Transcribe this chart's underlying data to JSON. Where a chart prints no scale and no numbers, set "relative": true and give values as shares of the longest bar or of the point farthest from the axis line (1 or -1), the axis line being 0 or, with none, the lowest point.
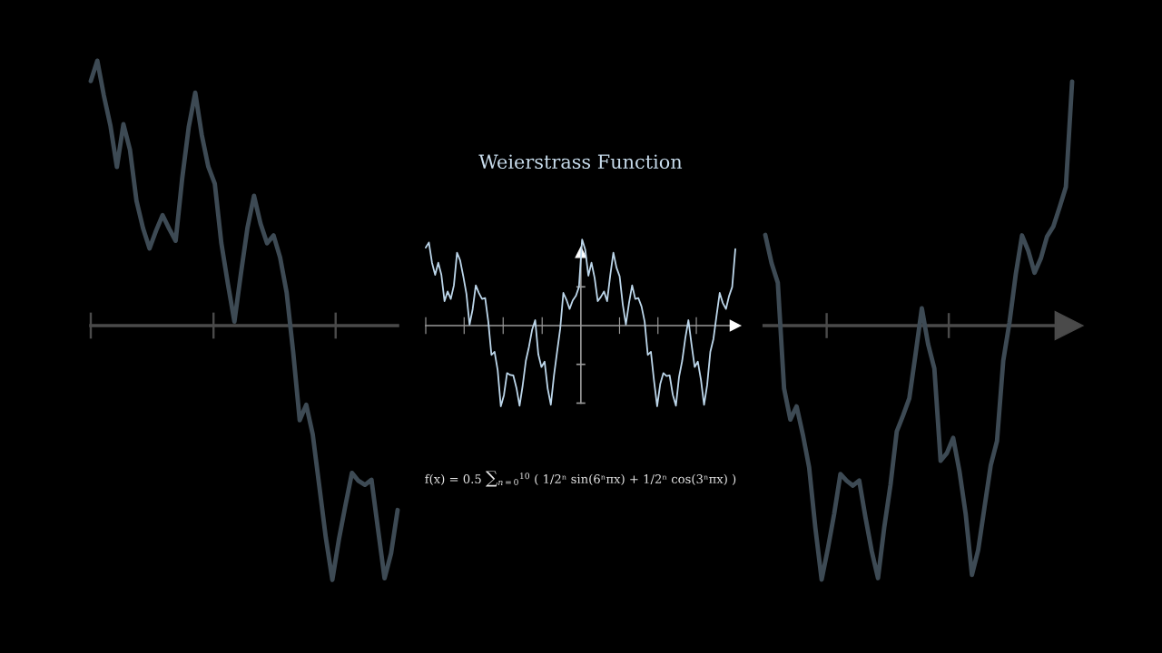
{
  "chart_data": [
    {
      "type": "line",
      "relative": true,
      "categories": [
        null,
        null,
        null,
        null,
        null,
        null,
        null,
        null,
        null,
        null,
        null,
        null,
        null,
        null,
        null,
        null,
        null,
        null,
        null,
        null,
        null,
        null,
        null,
        null,
        null,
        null,
        null,
        null,
        null,
        null,
        null,
        null,
        null,
        null,
        null,
        null,
        null,
        null,
        null,
        null,
        null,
        null,
        null,
        null,
        null,
        null,
        null,
        null
      ],
      "grid": false,
      "legend": false,
      "marker": "none",
      "line_style": "solid",
      "series": [
        {
          "color": "#3d4a54",
          "values": [
            0.923,
            1.0,
            0.869,
            0.756,
            0.599,
            0.76,
            0.664,
            0.471,
            0.368,
            0.291,
            0.358,
            0.417,
            0.366,
            0.32,
            0.555,
            0.749,
            0.879,
            0.72,
            0.6,
            0.535,
            0.311,
            0.158,
            0.015,
            0.197,
            0.369,
            0.49,
            0.385,
            0.311,
            0.34,
            0.257,
            0.125,
            -0.099,
            -0.357,
            -0.299,
            -0.411,
            -0.605,
            -0.8,
            -0.96,
            -0.808,
            -0.679,
            -0.556,
            -0.586,
            -0.601,
            -0.582,
            -0.769,
            -0.954,
            -0.86,
            -0.696
          ]
        }
      ]
    },
    {
      "type": "line",
      "relative": true,
      "title": "Weierstrass Function",
      "annotations": [
        "f(x) = 0.5 ∑$_{n=0}$$^{10}$ ( 1/2ⁿ sin(6ⁿπx) + 1/2ⁿ cos(3ⁿπx) )"
      ],
      "categories": [
        null,
        null,
        null,
        null,
        null,
        null,
        null,
        null,
        null,
        null,
        null,
        null,
        null,
        null,
        null,
        null,
        null,
        null,
        null,
        null,
        null,
        null,
        null,
        null,
        null,
        null,
        null,
        null,
        null,
        null,
        null,
        null,
        null,
        null,
        null,
        null,
        null,
        null,
        null,
        null,
        null,
        null,
        null,
        null,
        null,
        null,
        null,
        null,
        null,
        null,
        null,
        null,
        null,
        null,
        null,
        null,
        null,
        null,
        null,
        null,
        null,
        null,
        null,
        null,
        null,
        null,
        null,
        null,
        null,
        null,
        null,
        null,
        null,
        null,
        null,
        null,
        null,
        null,
        null,
        null,
        null,
        null,
        null,
        null,
        null,
        null,
        null,
        null,
        null,
        null,
        null,
        null,
        null,
        null,
        null,
        null,
        null,
        null,
        null,
        null
      ],
      "grid": false,
      "legend": false,
      "marker": "none",
      "line_style": "solid",
      "series": [
        {
          "color": "#bcd6ea",
          "values": [
            0.905,
            0.965,
            0.73,
            0.589,
            0.73,
            0.589,
            0.284,
            0.396,
            0.309,
            0.467,
            0.846,
            0.756,
            0.572,
            0.369,
            0.011,
            0.19,
            0.467,
            0.378,
            0.309,
            0.319,
            0.046,
            -0.34,
            -0.305,
            -0.518,
            -0.937,
            -0.807,
            -0.551,
            -0.573,
            -0.579,
            -0.723,
            -0.93,
            -0.695,
            -0.411,
            -0.247,
            -0.051,
            0.063,
            -0.335,
            -0.481,
            -0.418,
            -0.733,
            -0.919,
            -0.581,
            -0.305,
            -0.036,
            0.379,
            0.3,
            0.193,
            0.292,
            0.344,
            0.449,
            1.0,
            0.881,
            0.579,
            0.73,
            0.554,
            0.284,
            0.333,
            0.396,
            0.284,
            0.583,
            0.846,
            0.672,
            0.572,
            0.247,
            0.011,
            0.261,
            0.467,
            0.309,
            0.319,
            0.223,
            0.046,
            -0.34,
            -0.305,
            -0.64,
            -0.937,
            -0.676,
            -0.551,
            -0.586,
            -0.579,
            -0.803,
            -0.93,
            -0.597,
            -0.411,
            -0.147,
            0.063,
            -0.221,
            -0.481,
            -0.418,
            -0.628,
            -0.919,
            -0.689,
            -0.305,
            -0.155,
            0.117,
            0.379,
            0.262,
            0.193,
            0.344,
            0.449,
            0.888
          ]
        }
      ]
    },
    {
      "type": "line",
      "relative": true,
      "categories": [
        null,
        null,
        null,
        null,
        null,
        null,
        null,
        null,
        null,
        null,
        null,
        null,
        null,
        null,
        null,
        null,
        null,
        null,
        null,
        null,
        null,
        null,
        null,
        null,
        null,
        null,
        null,
        null,
        null,
        null,
        null,
        null,
        null,
        null,
        null,
        null,
        null,
        null,
        null,
        null,
        null,
        null,
        null,
        null,
        null,
        null,
        null,
        null,
        null,
        null
      ],
      "grid": false,
      "legend": false,
      "marker": "none",
      "line_style": "solid",
      "series": [
        {
          "color": "#3d4a54",
          "values": [
            0.357,
            0.246,
            0.169,
            -0.247,
            -0.37,
            -0.318,
            -0.429,
            -0.558,
            -0.797,
            -1.0,
            -0.877,
            -0.741,
            -0.584,
            -0.611,
            -0.63,
            -0.61,
            -0.755,
            -0.888,
            -0.994,
            -0.794,
            -0.626,
            -0.416,
            -0.354,
            -0.286,
            -0.112,
            0.068,
            -0.073,
            -0.169,
            -0.532,
            -0.502,
            -0.442,
            -0.572,
            -0.741,
            -0.981,
            -0.883,
            -0.716,
            -0.55,
            -0.455,
            -0.139,
            0.013,
            0.202,
            0.355,
            0.294,
            0.208,
            0.264,
            0.351,
            0.39,
            0.466,
            0.545,
            0.961
          ]
        }
      ]
    }
  ]
}
